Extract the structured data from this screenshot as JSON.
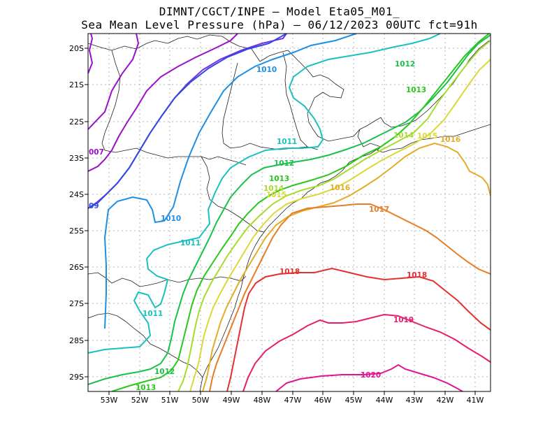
{
  "title": {
    "line1": "DIMNT/CGCT/INPE –  Model Eta05_M01_",
    "line2": "Sea Mean Level Pressure (hPa) – 06/12/2023 00UTC fct=91h"
  },
  "axes": {
    "lat_labels": [
      "20S",
      "21S",
      "22S",
      "23S",
      "24S",
      "25S",
      "26S",
      "27S",
      "28S",
      "29S"
    ],
    "lon_labels": [
      "53W",
      "52W",
      "51W",
      "50W",
      "49W",
      "48W",
      "47W",
      "46W",
      "45W",
      "44W",
      "43W",
      "42W",
      "41W"
    ]
  },
  "chart_data": {
    "type": "contour",
    "variable": "Sea Mean Level Pressure (hPa)",
    "grid": true,
    "contours": [
      {
        "level": 1007,
        "color": "#9a10c8",
        "labels": [
          "007"
        ]
      },
      {
        "level": 1008,
        "color": "#7a2fe0",
        "labels": []
      },
      {
        "level": 1009,
        "color": "#2f49e6",
        "labels": [
          "09"
        ]
      },
      {
        "level": 1010,
        "color": "#1e8fe3",
        "labels": [
          "1010",
          "1010"
        ]
      },
      {
        "level": 1011,
        "color": "#19c1bf",
        "labels": [
          "1011",
          "1011",
          "1011"
        ]
      },
      {
        "level": 1012,
        "color": "#18c24a",
        "labels": [
          "1012",
          "1012",
          "1012"
        ]
      },
      {
        "level": 1013,
        "color": "#28c81c",
        "labels": [
          "1013",
          "1013",
          "1013"
        ]
      },
      {
        "level": 1014,
        "color": "#a8dc2c",
        "labels": [
          "1014",
          "1014"
        ]
      },
      {
        "level": 1015,
        "color": "#dbd83a",
        "labels": [
          "1015",
          "1015"
        ]
      },
      {
        "level": 1016,
        "color": "#e3ac28",
        "labels": [
          "1016",
          "1016"
        ]
      },
      {
        "level": 1017,
        "color": "#e57e26",
        "labels": [
          "1017"
        ]
      },
      {
        "level": 1018,
        "color": "#e3312f",
        "labels": [
          "1018",
          "1018"
        ]
      },
      {
        "level": 1019,
        "color": "#e61e6e",
        "labels": [
          "1019"
        ]
      },
      {
        "level": 1020,
        "color": "#e01391",
        "labels": [
          "1020"
        ]
      }
    ]
  }
}
